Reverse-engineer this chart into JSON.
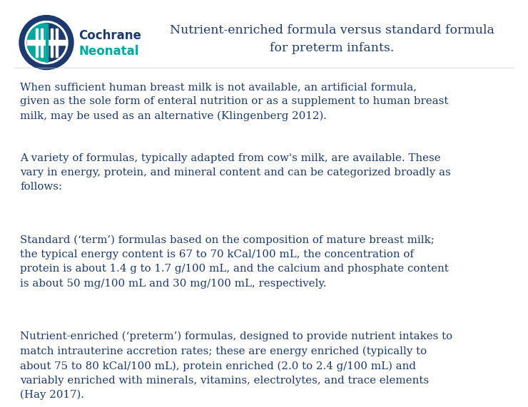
{
  "title_line1": "Nutrient-enriched formula versus standard formula",
  "title_line2": "for preterm infants.",
  "title_color": "#1c3a6e",
  "title_fontsize": 12.5,
  "body_color": "#1c3a6e",
  "body_fontsize": 10.8,
  "background_color": "#ffffff",
  "navy": "#1c3a6e",
  "teal": "#00a99d",
  "logo_text_cochrane": "Cochrane",
  "logo_text_neonatal": "Neonatal",
  "paragraphs": [
    "When sufficient human breast milk is not available, an artificial formula,\ngiven as the sole form of enteral nutrition or as a supplement to human breast\nmilk, may be used as an alternative (Klingenberg 2012).",
    "A variety of formulas, typically adapted from cow's milk, are available. These\nvary in energy, protein, and mineral content and can be categorized broadly as\nfollows:",
    "Standard (‘term’) formulas based on the composition of mature breast milk;\nthe typical energy content is 67 to 70 kCal/100 mL, the concentration of\nprotein is about 1.4 g to 1.7 g/100 mL, and the calcium and phosphate content\nis about 50 mg/100 mL and 30 mg/100 mL, respectively.",
    "Nutrient-enriched (‘preterm’) formulas, designed to provide nutrient intakes to\nmatch intrauterine accretion rates; these are energy enriched (typically to\nabout 75 to 80 kCal/100 mL), protein enriched (2.0 to 2.4 g/100 mL) and\nvariably enriched with minerals, vitamins, electrolytes, and trace elements\n(Hay 2017)."
  ]
}
